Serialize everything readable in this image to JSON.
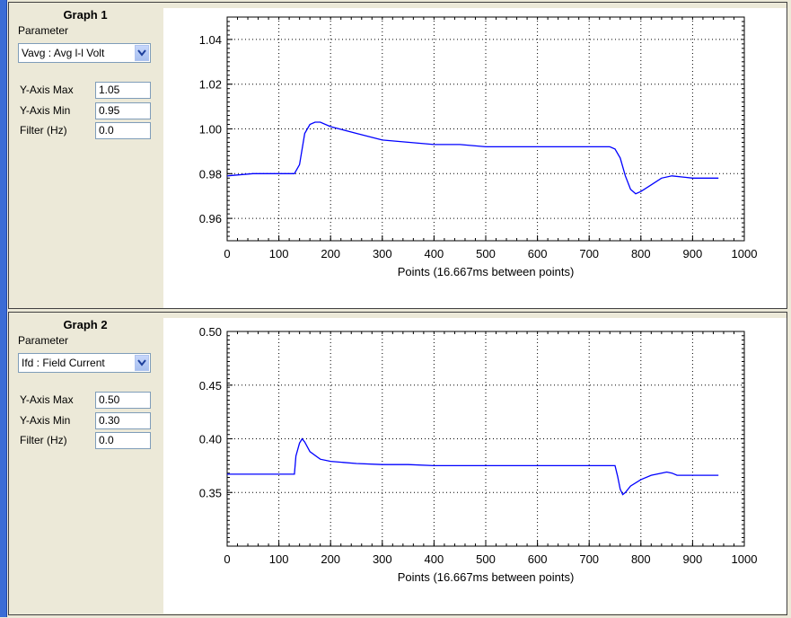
{
  "graphs": [
    {
      "title": "Graph 1",
      "param_label": "Parameter",
      "selected_param": "Vavg : Avg l-l Volt",
      "rows": [
        {
          "label": "Y-Axis Max",
          "value": "1.05"
        },
        {
          "label": "Y-Axis Min",
          "value": "0.95"
        },
        {
          "label": "Filter (Hz)",
          "value": "0.0"
        }
      ]
    },
    {
      "title": "Graph 2",
      "param_label": "Parameter",
      "selected_param": "Ifd : Field Current",
      "rows": [
        {
          "label": "Y-Axis Max",
          "value": "0.50"
        },
        {
          "label": "Y-Axis Min",
          "value": "0.30"
        },
        {
          "label": "Filter (Hz)",
          "value": "0.0"
        }
      ]
    }
  ],
  "colors": {
    "line": "#0000ff",
    "accent": "#3a6cd6"
  },
  "chart_data": [
    {
      "type": "line",
      "title": "",
      "xlabel": "Points (16.667ms between points)",
      "ylabel": "",
      "xlim": [
        0,
        1000
      ],
      "ylim": [
        0.95,
        1.05
      ],
      "x_ticks": [
        "0",
        "100",
        "200",
        "300",
        "400",
        "500",
        "600",
        "700",
        "800",
        "900",
        "1000"
      ],
      "y_ticks": [
        "0.96",
        "0.98",
        "1.00",
        "1.02",
        "1.04"
      ],
      "grid": true,
      "series": [
        {
          "x": [
            0,
            50,
            100,
            130,
            140,
            150,
            160,
            170,
            180,
            200,
            250,
            300,
            350,
            400,
            450,
            500,
            550,
            600,
            650,
            700,
            740,
            750,
            760,
            770,
            780,
            790,
            800,
            820,
            840,
            860,
            900,
            950
          ],
          "y": [
            0.979,
            0.98,
            0.98,
            0.98,
            0.984,
            0.998,
            1.002,
            1.003,
            1.003,
            1.001,
            0.998,
            0.995,
            0.994,
            0.993,
            0.993,
            0.992,
            0.992,
            0.992,
            0.992,
            0.992,
            0.992,
            0.991,
            0.987,
            0.979,
            0.973,
            0.971,
            0.972,
            0.975,
            0.978,
            0.979,
            0.978,
            0.978
          ]
        }
      ]
    },
    {
      "type": "line",
      "title": "",
      "xlabel": "Points (16.667ms between points)",
      "ylabel": "",
      "xlim": [
        0,
        1000
      ],
      "ylim": [
        0.3,
        0.5
      ],
      "x_ticks": [
        "0",
        "100",
        "200",
        "300",
        "400",
        "500",
        "600",
        "700",
        "800",
        "900",
        "1000"
      ],
      "y_ticks": [
        "0.35",
        "0.40",
        "0.45",
        "0.50"
      ],
      "grid": true,
      "series": [
        {
          "x": [
            0,
            50,
            100,
            130,
            133,
            140,
            145,
            150,
            160,
            180,
            200,
            250,
            300,
            350,
            400,
            450,
            500,
            550,
            600,
            650,
            700,
            750,
            755,
            760,
            765,
            770,
            780,
            800,
            820,
            840,
            850,
            860,
            870,
            900,
            950
          ],
          "y": [
            0.367,
            0.367,
            0.367,
            0.367,
            0.384,
            0.396,
            0.4,
            0.397,
            0.388,
            0.381,
            0.379,
            0.377,
            0.376,
            0.376,
            0.375,
            0.375,
            0.375,
            0.375,
            0.375,
            0.375,
            0.375,
            0.375,
            0.365,
            0.353,
            0.348,
            0.35,
            0.356,
            0.362,
            0.366,
            0.368,
            0.369,
            0.368,
            0.366,
            0.366,
            0.366
          ]
        }
      ]
    }
  ]
}
